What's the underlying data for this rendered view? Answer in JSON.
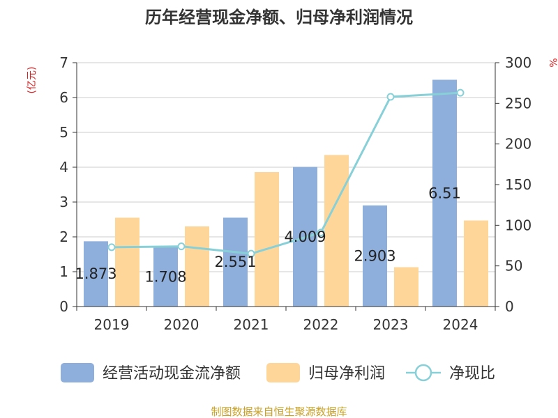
{
  "chart_data": {
    "type": "bar",
    "title": "历年经营现金净额、归母净利润情况",
    "categories": [
      "2019",
      "2020",
      "2021",
      "2022",
      "2023",
      "2024"
    ],
    "y_left": {
      "unit_label": "(亿元)",
      "ylim": [
        0,
        7
      ],
      "ticks": [
        0,
        1,
        2,
        3,
        4,
        5,
        6,
        7
      ]
    },
    "y_right": {
      "unit_label": "%",
      "ylim": [
        0,
        300
      ],
      "ticks": [
        0,
        50,
        100,
        150,
        200,
        250,
        300
      ]
    },
    "series": [
      {
        "name": "经营活动现金流净额",
        "kind": "bar",
        "axis": "left",
        "values": [
          1.873,
          1.708,
          2.551,
          4.009,
          2.903,
          6.51
        ],
        "labels": [
          "1.873",
          "1.708",
          "2.551",
          "4.009",
          "2.903",
          "6.51"
        ]
      },
      {
        "name": "归母净利润",
        "kind": "bar",
        "axis": "left",
        "values": [
          2.55,
          2.3,
          3.86,
          4.35,
          1.13,
          2.47
        ]
      },
      {
        "name": "净现比",
        "kind": "line",
        "axis": "right",
        "values": [
          73,
          74,
          65,
          91,
          258,
          263
        ]
      }
    ],
    "colors": {
      "cash_flow": "#8eaedb",
      "net_profit": "#ffd699",
      "ratio": "#88d0d8",
      "left_unit": "#e02020",
      "right_unit": "#e02020"
    },
    "grid": true,
    "legend_position": "bottom-center"
  },
  "source_note": "制图数据来自恒生聚源数据库"
}
